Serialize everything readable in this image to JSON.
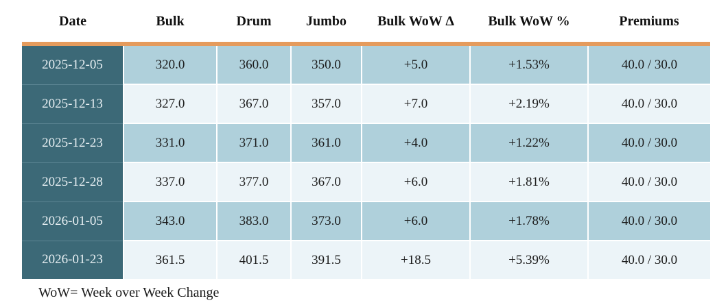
{
  "table": {
    "columns": [
      "Date",
      "Bulk",
      "Drum",
      "Jumbo",
      "Bulk WoW Δ",
      "Bulk WoW %",
      "Premiums"
    ],
    "rows": [
      [
        "2025-12-05",
        "320.0",
        "360.0",
        "350.0",
        "+5.0",
        "+1.53%",
        "40.0 / 30.0"
      ],
      [
        "2025-12-13",
        "327.0",
        "367.0",
        "357.0",
        "+7.0",
        "+2.19%",
        "40.0 / 30.0"
      ],
      [
        "2025-12-23",
        "331.0",
        "371.0",
        "361.0",
        "+4.0",
        "+1.22%",
        "40.0 / 30.0"
      ],
      [
        "2025-12-28",
        "337.0",
        "377.0",
        "367.0",
        "+6.0",
        "+1.81%",
        "40.0 / 30.0"
      ],
      [
        "2026-01-05",
        "343.0",
        "383.0",
        "373.0",
        "+6.0",
        "+1.78%",
        "40.0 / 30.0"
      ],
      [
        "2026-01-23",
        "361.5",
        "401.5",
        "391.5",
        "+18.5",
        "+5.39%",
        "40.0 / 30.0"
      ]
    ],
    "footnote": "WoW= Week over Week Change"
  },
  "colors": {
    "accent_bar": "#E59B5C",
    "date_column_bg": "#3C6977",
    "date_column_text": "#EAF1F4",
    "row_medium_bg": "#AFD0DB",
    "row_light_bg": "#ECF4F8",
    "text": "#1b1b1b"
  },
  "chart_data": {
    "type": "table",
    "title": "",
    "columns": [
      "Date",
      "Bulk",
      "Drum",
      "Jumbo",
      "Bulk WoW Δ",
      "Bulk WoW %",
      "Premiums"
    ],
    "rows": [
      {
        "date": "2025-12-05",
        "bulk": 320.0,
        "drum": 360.0,
        "jumbo": 350.0,
        "bulk_wow_delta": 5.0,
        "bulk_wow_pct": 1.53,
        "premiums": "40.0 / 30.0"
      },
      {
        "date": "2025-12-13",
        "bulk": 327.0,
        "drum": 367.0,
        "jumbo": 357.0,
        "bulk_wow_delta": 7.0,
        "bulk_wow_pct": 2.19,
        "premiums": "40.0 / 30.0"
      },
      {
        "date": "2025-12-23",
        "bulk": 331.0,
        "drum": 371.0,
        "jumbo": 361.0,
        "bulk_wow_delta": 4.0,
        "bulk_wow_pct": 1.22,
        "premiums": "40.0 / 30.0"
      },
      {
        "date": "2025-12-28",
        "bulk": 337.0,
        "drum": 377.0,
        "jumbo": 367.0,
        "bulk_wow_delta": 6.0,
        "bulk_wow_pct": 1.81,
        "premiums": "40.0 / 30.0"
      },
      {
        "date": "2026-01-05",
        "bulk": 343.0,
        "drum": 383.0,
        "jumbo": 373.0,
        "bulk_wow_delta": 6.0,
        "bulk_wow_pct": 1.78,
        "premiums": "40.0 / 30.0"
      },
      {
        "date": "2026-01-23",
        "bulk": 361.5,
        "drum": 401.5,
        "jumbo": 391.5,
        "bulk_wow_delta": 18.5,
        "bulk_wow_pct": 5.39,
        "premiums": "40.0 / 30.0"
      }
    ],
    "footnote": "WoW= Week over Week Change"
  }
}
